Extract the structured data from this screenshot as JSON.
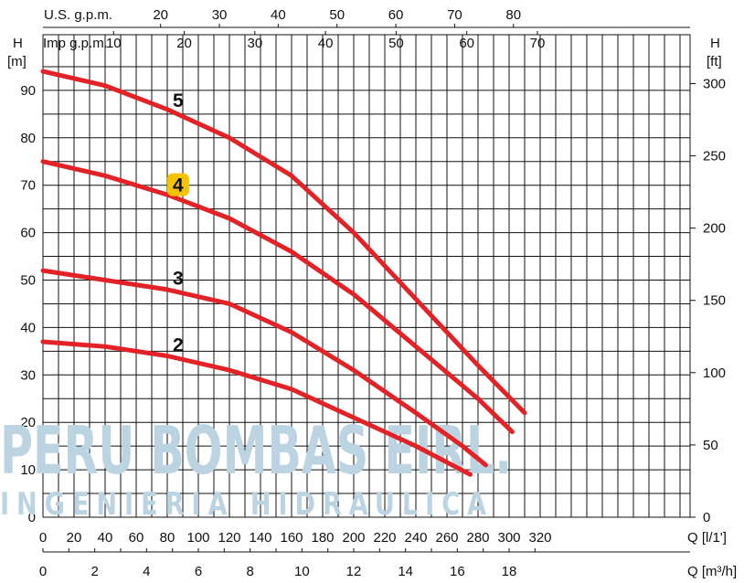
{
  "watermark": {
    "title": "PERU BOMBAS EIRL.",
    "subtitle": "INGENIERIA HIDRAULICA"
  },
  "chart_data": {
    "type": "line",
    "axes": {
      "top1_label": "U.S. g.p.m.",
      "top1_ticks": [
        "20",
        "30",
        "40",
        "50",
        "60",
        "70",
        "80"
      ],
      "top2_label": "Imp g.p.m.",
      "top2_ticks": [
        "10",
        "20",
        "30",
        "40",
        "50",
        "60",
        "70"
      ],
      "left_label_1": "H",
      "left_label_2": "[m]",
      "right_label_1": "H",
      "right_label_2": "[ft]",
      "bottom1_label": "Q [l/1']",
      "bottom2_label": "Q [m³/h]",
      "y_m_ticks": [
        0,
        10,
        20,
        30,
        40,
        50,
        60,
        70,
        80,
        90
      ],
      "y_ft_ticks": [
        0,
        50,
        100,
        150,
        200,
        250,
        300
      ],
      "x_lpm_ticks": [
        0,
        20,
        40,
        60,
        80,
        100,
        120,
        140,
        160,
        180,
        200,
        220,
        240,
        260,
        280,
        300,
        320
      ],
      "x_m3h_ticks": [
        0,
        2,
        4,
        6,
        8,
        10,
        12,
        14,
        16,
        18
      ],
      "xlim": [
        0,
        335
      ],
      "ylim": [
        0,
        98
      ]
    },
    "series": [
      {
        "name": "5",
        "highlight": false,
        "x": [
          0,
          40,
          80,
          120,
          160,
          200,
          240,
          280,
          310
        ],
        "y": [
          94,
          91,
          86,
          80,
          72,
          60,
          46,
          32,
          22
        ]
      },
      {
        "name": "4",
        "highlight": true,
        "x": [
          0,
          40,
          80,
          120,
          160,
          200,
          240,
          280,
          302
        ],
        "y": [
          75,
          72,
          68,
          63,
          56,
          47,
          36,
          25,
          18
        ]
      },
      {
        "name": "3",
        "highlight": false,
        "x": [
          0,
          40,
          80,
          120,
          160,
          200,
          240,
          270,
          285
        ],
        "y": [
          52,
          50,
          48,
          45,
          39,
          31,
          22,
          15,
          11
        ]
      },
      {
        "name": "2",
        "highlight": false,
        "x": [
          0,
          40,
          80,
          120,
          160,
          200,
          240,
          275
        ],
        "y": [
          37,
          36,
          34,
          31,
          27,
          21,
          15,
          9
        ]
      }
    ]
  },
  "colors": {
    "curve": "#e32227",
    "highlight_badge": "#f5c400",
    "grid": "#111111"
  }
}
